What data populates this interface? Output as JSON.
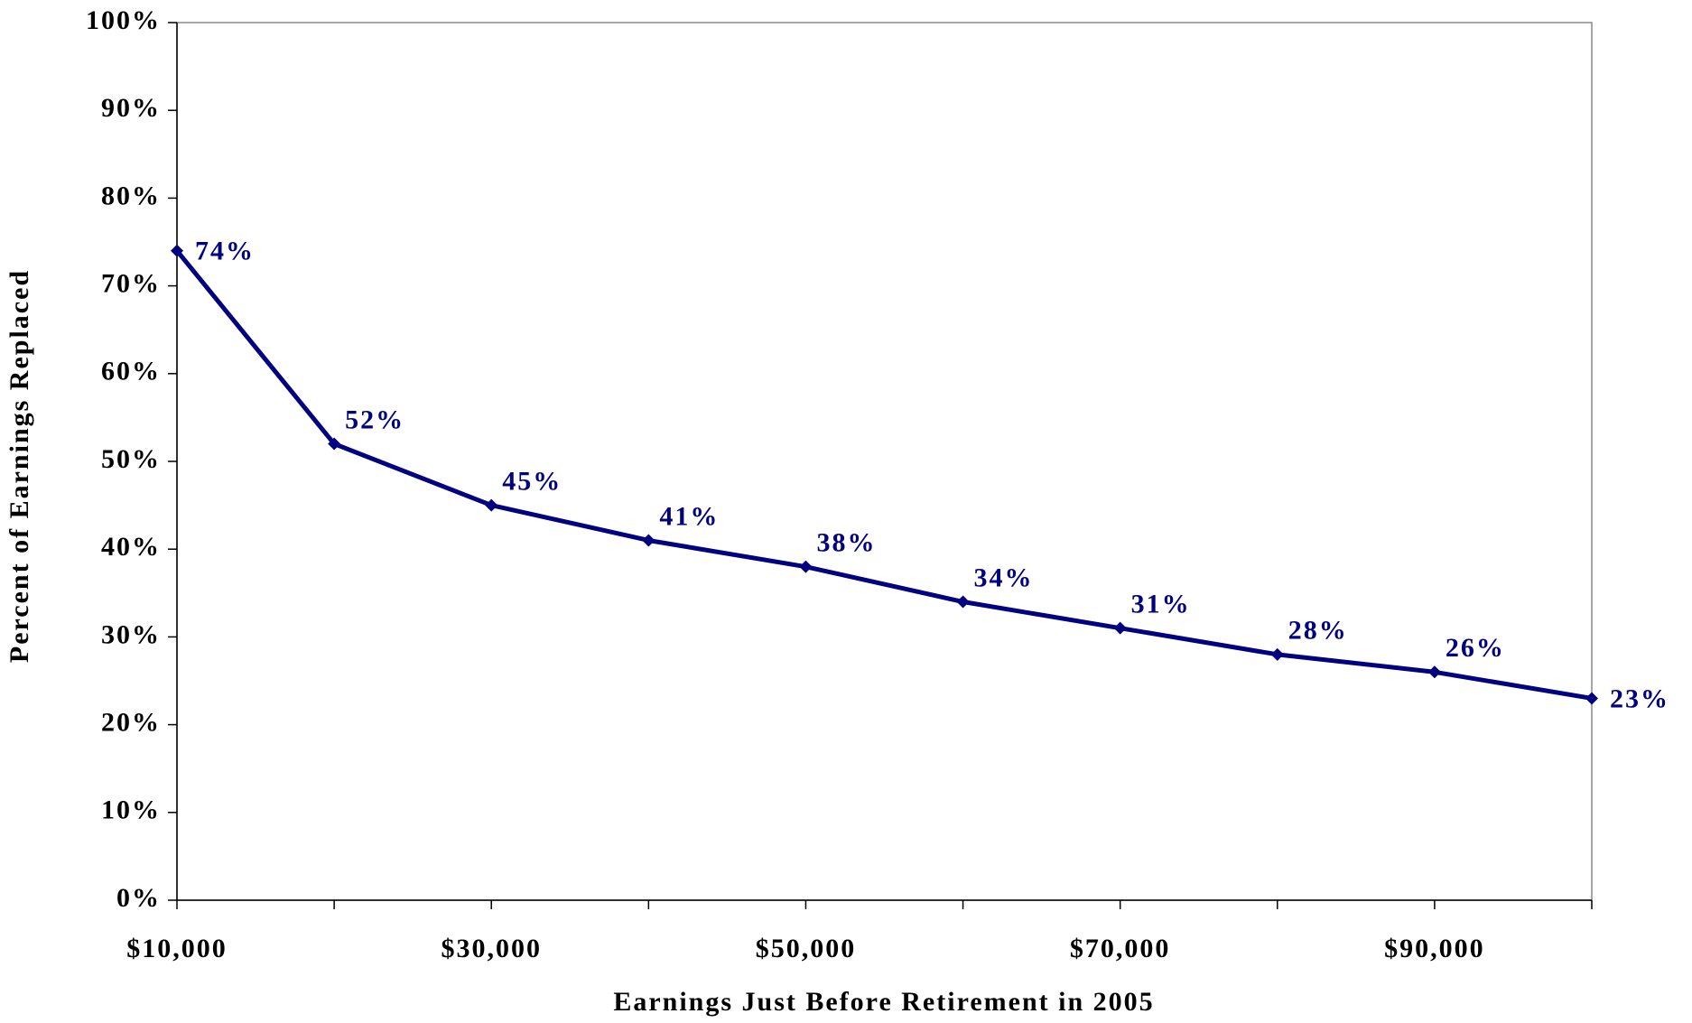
{
  "chart_data": {
    "type": "line",
    "x_label": "Earnings Just Before Retirement in 2005",
    "y_label": "Percent of Earnings Replaced",
    "x": [
      10000,
      20000,
      30000,
      40000,
      50000,
      60000,
      70000,
      80000,
      90000,
      100000
    ],
    "series": [
      {
        "color": "#000080",
        "values": [
          74,
          52,
          45,
          41,
          38,
          34,
          31,
          28,
          26,
          23
        ],
        "value_labels": [
          "74%",
          "52%",
          "45%",
          "41%",
          "38%",
          "34%",
          "31%",
          "28%",
          "26%",
          "23%"
        ]
      }
    ],
    "xlim": [
      10000,
      100000
    ],
    "xticks": [
      {
        "value": 10000,
        "label": "$10,000"
      },
      {
        "value": 20000,
        "label": null
      },
      {
        "value": 30000,
        "label": "$30,000"
      },
      {
        "value": 40000,
        "label": null
      },
      {
        "value": 50000,
        "label": "$50,000"
      },
      {
        "value": 60000,
        "label": null
      },
      {
        "value": 70000,
        "label": "$70,000"
      },
      {
        "value": 80000,
        "label": null
      },
      {
        "value": 90000,
        "label": "$90,000"
      },
      {
        "value": 100000,
        "label": null
      }
    ],
    "ylim": [
      0,
      100
    ],
    "yticks": [
      {
        "value": 0,
        "label": "0%"
      },
      {
        "value": 10,
        "label": "10%"
      },
      {
        "value": 20,
        "label": "20%"
      },
      {
        "value": 30,
        "label": "30%"
      },
      {
        "value": 40,
        "label": "40%"
      },
      {
        "value": 50,
        "label": "50%"
      },
      {
        "value": 60,
        "label": "60%"
      },
      {
        "value": 70,
        "label": "70%"
      },
      {
        "value": 80,
        "label": "80%"
      },
      {
        "value": 90,
        "label": "90%"
      },
      {
        "value": 100,
        "label": "100%"
      }
    ],
    "grid": false
  }
}
